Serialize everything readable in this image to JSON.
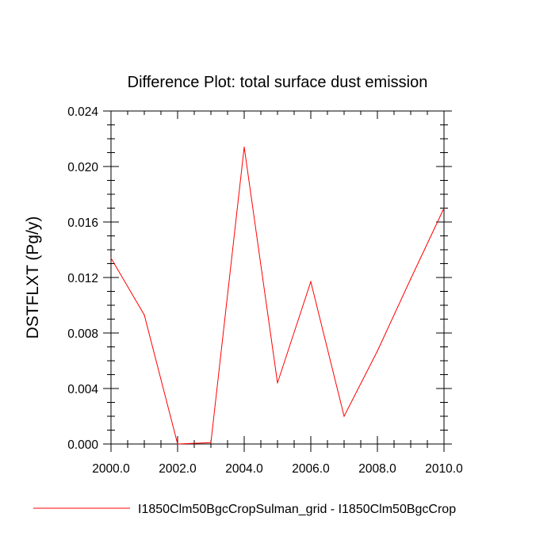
{
  "chart_data": {
    "type": "line",
    "title": "Difference Plot: total surface dust emission",
    "xlabel": "",
    "ylabel": "DSTFLXT  (Pg/y)",
    "xlim": [
      2000,
      2010
    ],
    "ylim": [
      0,
      0.024
    ],
    "x_ticks": [
      "2000.0",
      "2002.0",
      "2004.0",
      "2006.0",
      "2008.0",
      "2010.0"
    ],
    "y_ticks": [
      "0.000",
      "0.004",
      "0.008",
      "0.012",
      "0.016",
      "0.020",
      "0.024"
    ],
    "grid": false,
    "legend_position": "bottom",
    "series": [
      {
        "name": "I1850Clm50BgcCropSulman_grid - I1850Clm50BgcCrop",
        "color": "#ff0000",
        "x": [
          2000,
          2001,
          2002,
          2003,
          2004,
          2005,
          2006,
          2007,
          2008,
          2009,
          2010
        ],
        "values": [
          0.0134,
          0.0093,
          0.0,
          0.0001,
          0.0214,
          0.0044,
          0.0117,
          0.002,
          0.0067,
          0.0119,
          0.017
        ]
      }
    ]
  }
}
